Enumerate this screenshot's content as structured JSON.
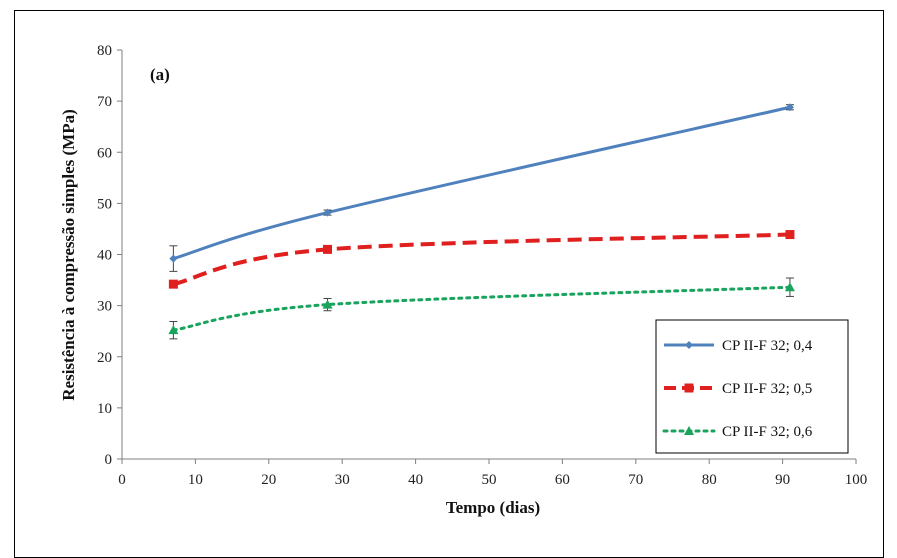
{
  "chart_data": {
    "type": "line",
    "panel_label": "(a)",
    "xlabel": "Tempo (dias)",
    "ylabel": "Resistência à compressão simples (MPa)",
    "xlim": [
      0,
      100
    ],
    "ylim": [
      0,
      80
    ],
    "x_ticks": [
      "0",
      "10",
      "20",
      "30",
      "40",
      "50",
      "60",
      "70",
      "80",
      "90",
      "100"
    ],
    "y_ticks": [
      "0",
      "10",
      "20",
      "30",
      "40",
      "50",
      "60",
      "70",
      "80"
    ],
    "grid": false,
    "legend_position": "bottom-right",
    "series": [
      {
        "name": "CP II-F 32; 0,4",
        "color": "#4f81bd",
        "marker": "diamond",
        "line_style": "solid",
        "x": [
          7,
          28,
          91
        ],
        "y": [
          39.2,
          48.2,
          68.8
        ],
        "error": [
          2.5,
          0.5,
          0.5
        ]
      },
      {
        "name": "CP II-F 32; 0,5",
        "color": "#e01f1f",
        "marker": "square",
        "line_style": "dashed",
        "x": [
          7,
          28,
          91
        ],
        "y": [
          34.2,
          41.0,
          43.9
        ],
        "error": [
          0.5,
          0.5,
          0.5
        ]
      },
      {
        "name": "CP II-F 32; 0,6",
        "color": "#1aa35c",
        "marker": "triangle",
        "line_style": "dotted",
        "x": [
          7,
          28,
          91
        ],
        "y": [
          25.2,
          30.2,
          33.6
        ],
        "error": [
          1.7,
          1.2,
          1.8
        ]
      }
    ]
  }
}
